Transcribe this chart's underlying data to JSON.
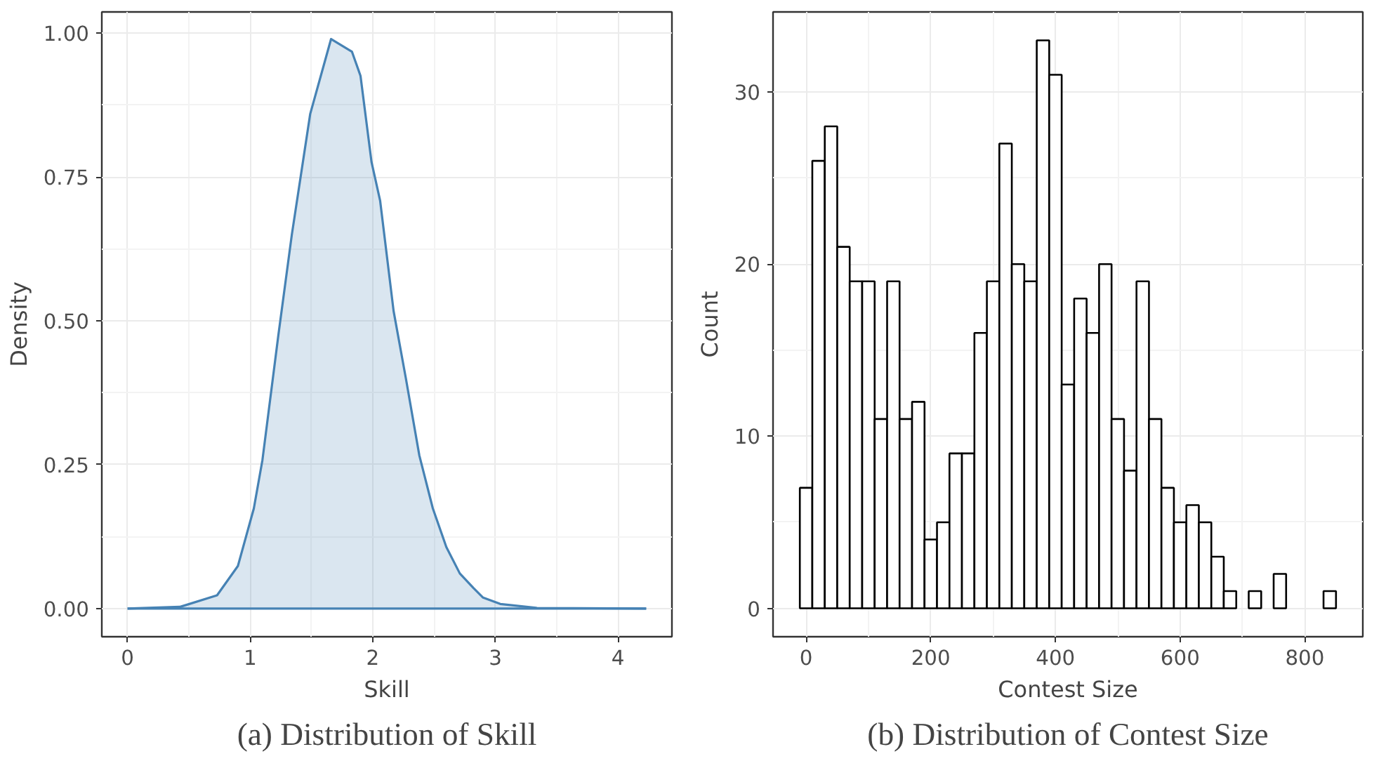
{
  "chart_data": [
    {
      "type": "area",
      "title": "(a) Distribution of Skill",
      "xlabel": "Skill",
      "ylabel": "Density",
      "x": [
        0,
        0.43,
        0.73,
        0.9,
        1.03,
        1.1,
        1.23,
        1.34,
        1.49,
        1.66,
        1.83,
        1.9,
        1.99,
        2.06,
        2.17,
        2.27,
        2.38,
        2.49,
        2.6,
        2.71,
        2.82,
        2.9,
        3.04,
        3.34,
        4.23
      ],
      "series": [
        {
          "color": "#4682b4",
          "values": [
            0,
            0.003,
            0.023,
            0.074,
            0.174,
            0.258,
            0.475,
            0.65,
            0.86,
            0.99,
            0.968,
            0.926,
            0.776,
            0.709,
            0.517,
            0.4,
            0.266,
            0.174,
            0.107,
            0.061,
            0.036,
            0.019,
            0.008,
            0.001,
            0
          ]
        }
      ],
      "xlim": [
        -0.21,
        4.44
      ],
      "ylim": [
        -0.049,
        1.037
      ],
      "xticks": [
        0,
        1,
        2,
        3,
        4
      ],
      "yticks": [
        {
          "value": 0,
          "label": "0.00"
        },
        {
          "value": 0.25,
          "label": "0.25"
        },
        {
          "value": 0.5,
          "label": "0.50"
        },
        {
          "value": 0.75,
          "label": "0.75"
        },
        {
          "value": 1,
          "label": "1.00"
        }
      ],
      "grid": true
    },
    {
      "type": "histogram",
      "title": "(b) Distribution of Contest Size",
      "xlabel": "Contest Size",
      "ylabel": "Count",
      "color": "#ffffff",
      "bins": [
        -10,
        10,
        30,
        50,
        70,
        90,
        110,
        130,
        150,
        170,
        190,
        210,
        230,
        250,
        270,
        290,
        310,
        330,
        350,
        370,
        390,
        410,
        430,
        450,
        470,
        490,
        510,
        530,
        550,
        570,
        590,
        610,
        630,
        650,
        670,
        690,
        710,
        730,
        750,
        770,
        790,
        810,
        830,
        850
      ],
      "values": [
        7,
        26,
        28,
        21,
        19,
        19,
        11,
        19,
        11,
        12,
        4,
        5,
        9,
        9,
        16,
        19,
        27,
        20,
        19,
        33,
        31,
        13,
        18,
        16,
        20,
        11,
        8,
        19,
        11,
        7,
        5,
        6,
        5,
        3,
        1,
        0,
        1,
        0,
        2,
        0,
        0,
        0,
        1
      ],
      "xlim": [
        -53,
        893
      ],
      "ylim": [
        -1.65,
        34.65
      ],
      "xticks": [
        0,
        200,
        400,
        600,
        800
      ],
      "yticks": [
        0,
        10,
        20,
        30
      ],
      "grid": true
    }
  ]
}
